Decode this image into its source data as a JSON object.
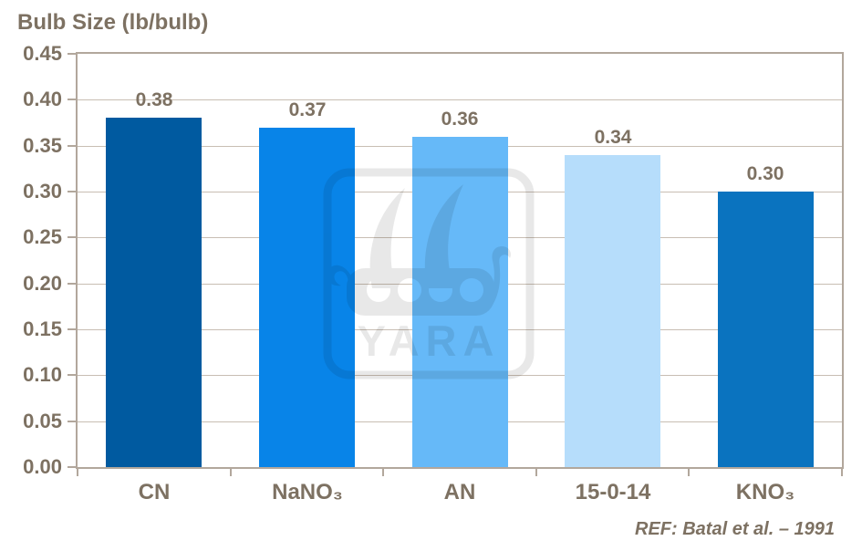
{
  "title": "Bulb Size (lb/bulb)",
  "watermark_text": "YARA",
  "ref_note": "REF: Batal et al. – 1991",
  "colors": {
    "text": "#7d7162",
    "gridline": "#c8beb3",
    "axis": "#b2a79c",
    "bar_colors": [
      "#005aa0",
      "#0884e8",
      "#66b9f8",
      "#b6ddfb",
      "#0a73bf"
    ]
  },
  "chart_data": {
    "type": "bar",
    "title": "Bulb Size (lb/bulb)",
    "categories": [
      "CN",
      "NaNO₃",
      "AN",
      "15-0-14",
      "KNO₃"
    ],
    "values": [
      0.38,
      0.37,
      0.36,
      0.34,
      0.3
    ],
    "data_labels": [
      "0.38",
      "0.37",
      "0.36",
      "0.34",
      "0.30"
    ],
    "xlabel": "",
    "ylabel": "Bulb Size (lb/bulb)",
    "ylim": [
      0,
      0.45
    ],
    "ytick_step": 0.05,
    "ytick_labels": [
      "0.00",
      "0.05",
      "0.10",
      "0.15",
      "0.20",
      "0.25",
      "0.30",
      "0.35",
      "0.40",
      "0.45"
    ],
    "grid": true,
    "legend": false,
    "annotation": "REF: Batal et al. – 1991"
  }
}
